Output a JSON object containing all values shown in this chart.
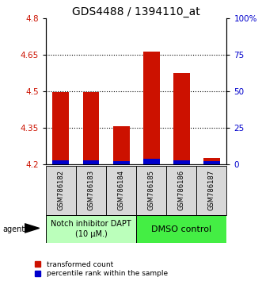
{
  "title": "GDS4488 / 1394110_at",
  "samples": [
    "GSM786182",
    "GSM786183",
    "GSM786184",
    "GSM786185",
    "GSM786186",
    "GSM786187"
  ],
  "red_values": [
    4.497,
    4.497,
    4.357,
    4.662,
    4.575,
    4.227
  ],
  "blue_values": [
    4.215,
    4.215,
    4.213,
    4.222,
    4.215,
    4.213
  ],
  "base_value": 4.2,
  "ylim_min": 4.2,
  "ylim_max": 4.8,
  "yticks_left": [
    4.2,
    4.35,
    4.5,
    4.65,
    4.8
  ],
  "yticks_right_vals": [
    0,
    25,
    50,
    75,
    100
  ],
  "yticks_right_labels": [
    "0",
    "25",
    "50",
    "75",
    "100%"
  ],
  "grid_lines": [
    4.35,
    4.5,
    4.65
  ],
  "bar_width": 0.55,
  "red_color": "#cc1100",
  "blue_color": "#0000cc",
  "group1_label": "Notch inhibitor DAPT\n(10 μM.)",
  "group2_label": "DMSO control",
  "group1_color": "#bbffbb",
  "group2_color": "#44ee44",
  "legend_red": "transformed count",
  "legend_blue": "percentile rank within the sample",
  "agent_label": "agent",
  "title_fontsize": 10,
  "tick_fontsize": 7.5,
  "sample_fontsize": 6,
  "group_fontsize": 7,
  "legend_fontsize": 6.5
}
